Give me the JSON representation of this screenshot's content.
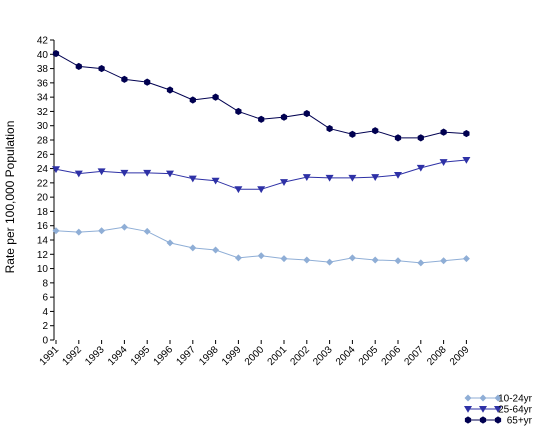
{
  "chart_data": {
    "type": "line",
    "title": "",
    "xlabel": "",
    "ylabel": "Rate per 100,000 Population",
    "ylim": [
      0,
      42
    ],
    "ytick_step": 2,
    "grid": false,
    "legend_position": "bottom-right",
    "categories": [
      "1991",
      "1992",
      "1993",
      "1994",
      "1995",
      "1996",
      "1997",
      "1998",
      "1999",
      "2000",
      "2001",
      "2002",
      "2003",
      "2004",
      "2005",
      "2006",
      "2007",
      "2008",
      "2009"
    ],
    "series": [
      {
        "name": "10-24yr",
        "marker": "diamond",
        "color": "#8faed6",
        "values": [
          15.3,
          15.1,
          15.3,
          15.8,
          15.2,
          13.6,
          12.9,
          12.6,
          11.5,
          11.8,
          11.4,
          11.2,
          10.9,
          11.5,
          11.2,
          11.1,
          10.8,
          11.1,
          11.4
        ]
      },
      {
        "name": "25-64yr",
        "marker": "triangle-down",
        "color": "#2e31a6",
        "values": [
          23.9,
          23.3,
          23.6,
          23.4,
          23.4,
          23.3,
          22.6,
          22.3,
          21.1,
          21.1,
          22.1,
          22.8,
          22.7,
          22.7,
          22.8,
          23.1,
          24.1,
          24.9,
          25.2
        ]
      },
      {
        "name": "65+yr",
        "marker": "hexagon",
        "color": "#000050",
        "values": [
          40.1,
          38.3,
          38.0,
          36.5,
          36.1,
          35.0,
          33.6,
          34.0,
          32.0,
          30.9,
          31.2,
          31.7,
          29.6,
          28.8,
          29.3,
          28.3,
          28.3,
          29.1,
          28.9
        ]
      }
    ]
  }
}
